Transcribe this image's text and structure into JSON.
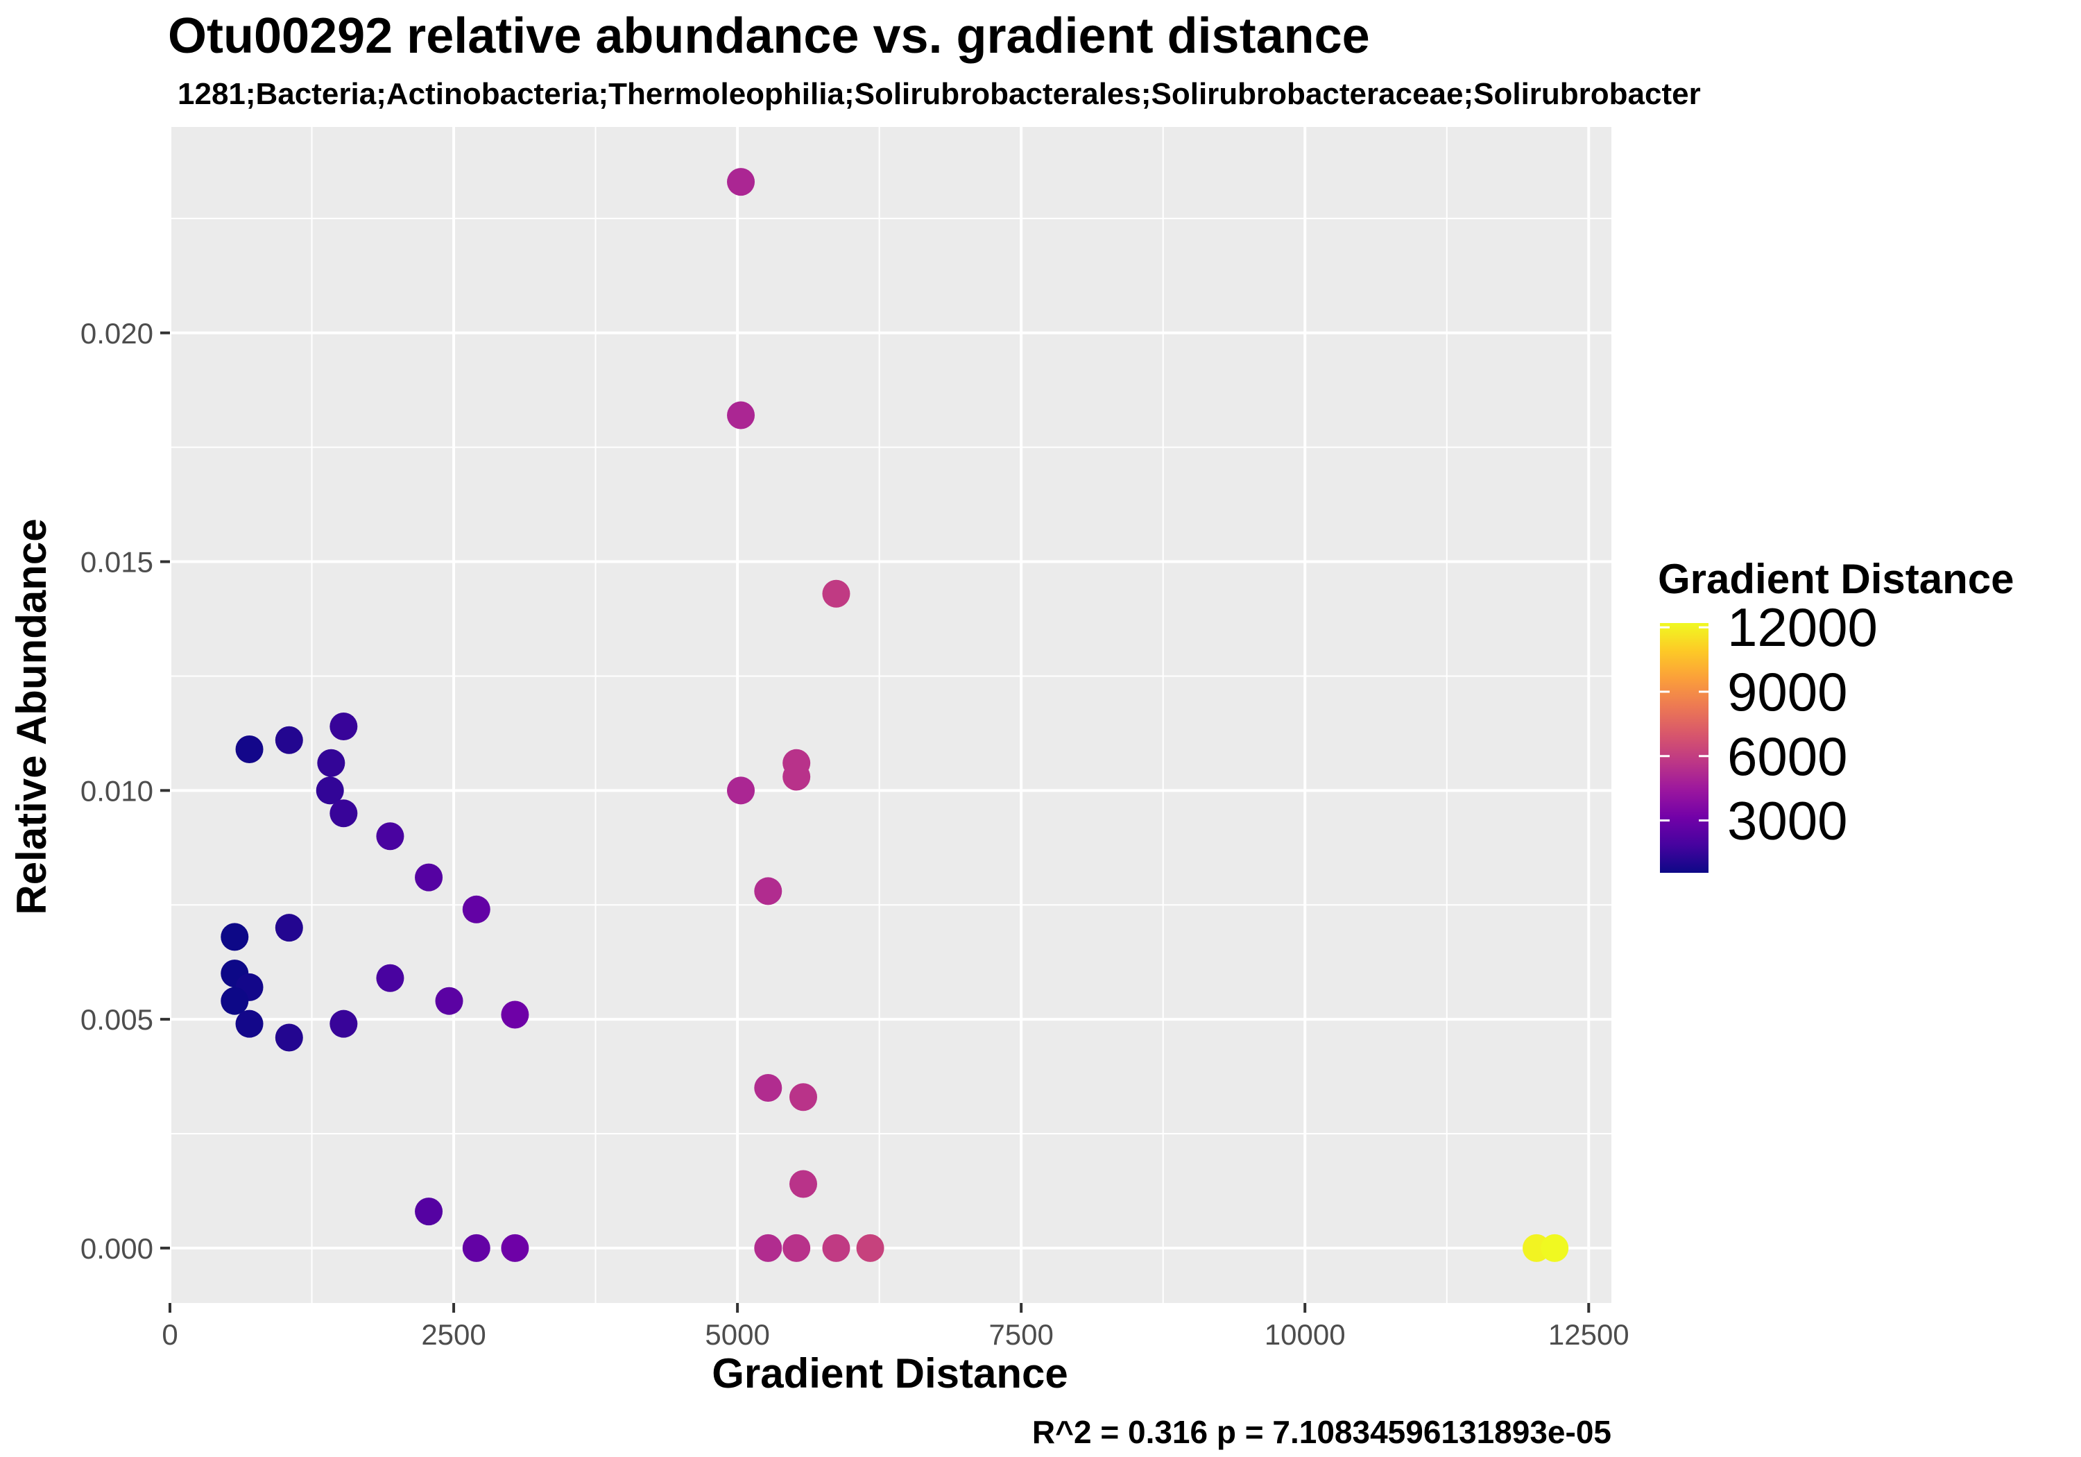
{
  "chart_data": {
    "type": "scatter",
    "title": "Otu00292 relative abundance vs. gradient distance",
    "subtitle": "1281;Bacteria;Actinobacteria;Thermoleophilia;Solirubrobacterales;Solirubrobacteraceae;Solirubrobacter",
    "xlabel": "Gradient Distance",
    "ylabel": "Relative Abundance",
    "caption": "R^2 =  0.316 p = 7.10834596131893e-05",
    "xlim": [
      0,
      12700
    ],
    "ylim": [
      -0.0012,
      0.0245
    ],
    "x_ticks": [
      0,
      2500,
      5000,
      7500,
      10000,
      12500
    ],
    "x_tick_labels": [
      "0",
      "2500",
      "5000",
      "7500",
      "10000",
      "12500"
    ],
    "y_ticks": [
      0.0,
      0.005,
      0.01,
      0.015,
      0.02
    ],
    "y_tick_labels": [
      "0.000",
      "0.005",
      "0.010",
      "0.015",
      "0.020"
    ],
    "grid": true,
    "background": "#ebebeb",
    "gridline_color": "#ffffff",
    "color_scale": {
      "title": "Gradient Distance",
      "palette": "plasma",
      "limits": [
        560,
        12200
      ],
      "stops": [
        "#0d0887",
        "#46039f",
        "#7201a8",
        "#9c179e",
        "#bd3786",
        "#d8576b",
        "#ed7953",
        "#fb9f3a",
        "#fdca26",
        "#f0f921"
      ],
      "breaks": [
        12000,
        9000,
        6000,
        3000
      ],
      "break_labels": [
        "12000",
        "9000",
        "6000",
        "3000"
      ],
      "legend_position": "right"
    },
    "points": [
      {
        "x": 700,
        "y": 0.0109
      },
      {
        "x": 1050,
        "y": 0.0111
      },
      {
        "x": 1530,
        "y": 0.0114
      },
      {
        "x": 1420,
        "y": 0.0106
      },
      {
        "x": 1410,
        "y": 0.01
      },
      {
        "x": 1530,
        "y": 0.0095
      },
      {
        "x": 1940,
        "y": 0.009
      },
      {
        "x": 2280,
        "y": 0.0081
      },
      {
        "x": 2700,
        "y": 0.0074
      },
      {
        "x": 1050,
        "y": 0.007
      },
      {
        "x": 570,
        "y": 0.0068
      },
      {
        "x": 570,
        "y": 0.006
      },
      {
        "x": 700,
        "y": 0.0057
      },
      {
        "x": 570,
        "y": 0.0054
      },
      {
        "x": 700,
        "y": 0.0049
      },
      {
        "x": 1050,
        "y": 0.0046
      },
      {
        "x": 1530,
        "y": 0.0049
      },
      {
        "x": 1940,
        "y": 0.0059
      },
      {
        "x": 2460,
        "y": 0.0054
      },
      {
        "x": 3040,
        "y": 0.0051
      },
      {
        "x": 2280,
        "y": 0.0008
      },
      {
        "x": 2700,
        "y": 0.0
      },
      {
        "x": 3040,
        "y": 0.0
      },
      {
        "x": 5030,
        "y": 0.0233
      },
      {
        "x": 5030,
        "y": 0.0182
      },
      {
        "x": 5870,
        "y": 0.0143
      },
      {
        "x": 5520,
        "y": 0.0106
      },
      {
        "x": 5520,
        "y": 0.0103
      },
      {
        "x": 5030,
        "y": 0.01
      },
      {
        "x": 5270,
        "y": 0.0078
      },
      {
        "x": 5270,
        "y": 0.0035
      },
      {
        "x": 5580,
        "y": 0.0033
      },
      {
        "x": 5580,
        "y": 0.0014
      },
      {
        "x": 5270,
        "y": 0.0
      },
      {
        "x": 5520,
        "y": 0.0
      },
      {
        "x": 5870,
        "y": 0.0
      },
      {
        "x": 6170,
        "y": 0.0
      },
      {
        "x": 12040,
        "y": 0.0
      },
      {
        "x": 12200,
        "y": 0.0
      }
    ]
  }
}
